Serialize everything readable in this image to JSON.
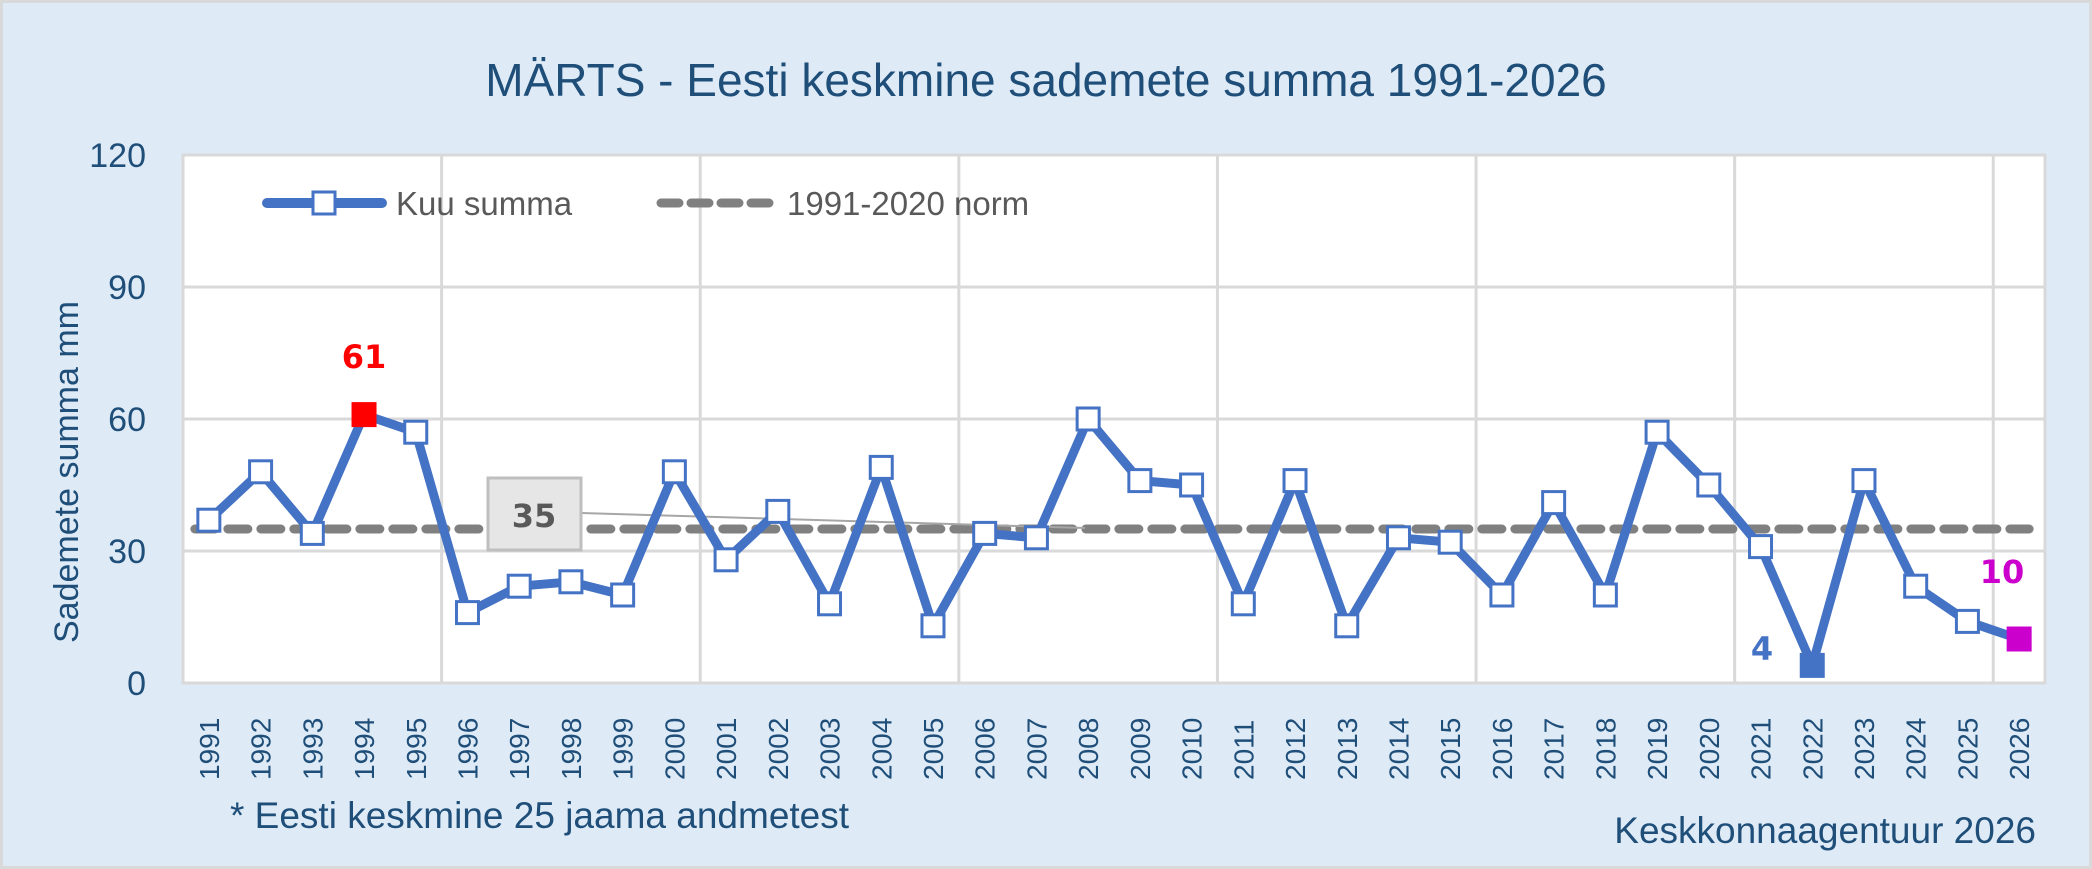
{
  "chart_data": {
    "type": "line",
    "title": "MÄRTS - Eesti keskmine sademete summa 1991-2026",
    "xlabel": "",
    "ylabel": "Sademete summa mm",
    "ylim": [
      0,
      120
    ],
    "yticks": [
      0,
      30,
      60,
      90,
      120
    ],
    "grid": true,
    "legend_position": "top-left inside",
    "categories": [
      "1991",
      "1992",
      "1993",
      "1994",
      "1995",
      "1996",
      "1997",
      "1998",
      "1999",
      "2000",
      "2001",
      "2002",
      "2003",
      "2004",
      "2005",
      "2006",
      "2007",
      "2008",
      "2009",
      "2010",
      "2011",
      "2012",
      "2013",
      "2014",
      "2015",
      "2016",
      "2017",
      "2018",
      "2019",
      "2020",
      "2021",
      "2022",
      "2023",
      "2024",
      "2025",
      "2026"
    ],
    "series": [
      {
        "name": "Kuu summa",
        "style": "solid line with square markers",
        "color": "#4472C4",
        "values": [
          37,
          48,
          34,
          61,
          57,
          16,
          22,
          23,
          20,
          48,
          28,
          39,
          18,
          49,
          13,
          34,
          33,
          60,
          46,
          45,
          18,
          46,
          13,
          33,
          32,
          20,
          41,
          20,
          57,
          45,
          31,
          4,
          46,
          22,
          14,
          10
        ]
      },
      {
        "name": "1991-2020 norm",
        "style": "dashed",
        "color": "#808080",
        "values": [
          35,
          35,
          35,
          35,
          35,
          35,
          35,
          35,
          35,
          35,
          35,
          35,
          35,
          35,
          35,
          35,
          35,
          35,
          35,
          35,
          35,
          35,
          35,
          35,
          35,
          35,
          35,
          35,
          35,
          35,
          35,
          35,
          35,
          35,
          35,
          35
        ]
      }
    ],
    "annotations": [
      {
        "text": "61",
        "year": "1994",
        "color": "#FF0000",
        "note": "maximum, red filled marker"
      },
      {
        "text": "4",
        "year": "2022",
        "color": "#4472C4",
        "note": "minimum, blue filled marker"
      },
      {
        "text": "10",
        "year": "2026",
        "color": "#CC00CC",
        "note": "current year, magenta filled marker"
      },
      {
        "text": "35",
        "target": "1991-2020 norm",
        "note": "callout box with leader line"
      }
    ]
  },
  "title": "MÄRTS - Eesti keskmine sademete summa 1991-2026",
  "y_axis_title": "Sademete summa mm",
  "legend": {
    "series_label": "Kuu summa",
    "norm_label": "1991-2020 norm"
  },
  "labels": {
    "max": "61",
    "min": "4",
    "current": "10",
    "norm": "35"
  },
  "footnote": "* Eesti keskmine 25 jaama andmetest",
  "source": "Keskkonnaagentuur 2026",
  "colors": {
    "background": "#DEEBF7",
    "plot_background": "#FFFFFF",
    "line": "#4472C4",
    "norm": "#808080",
    "max": "#FF0000",
    "current": "#CC00CC",
    "text": "#1F4E79",
    "grid": "#D9D9D9"
  }
}
